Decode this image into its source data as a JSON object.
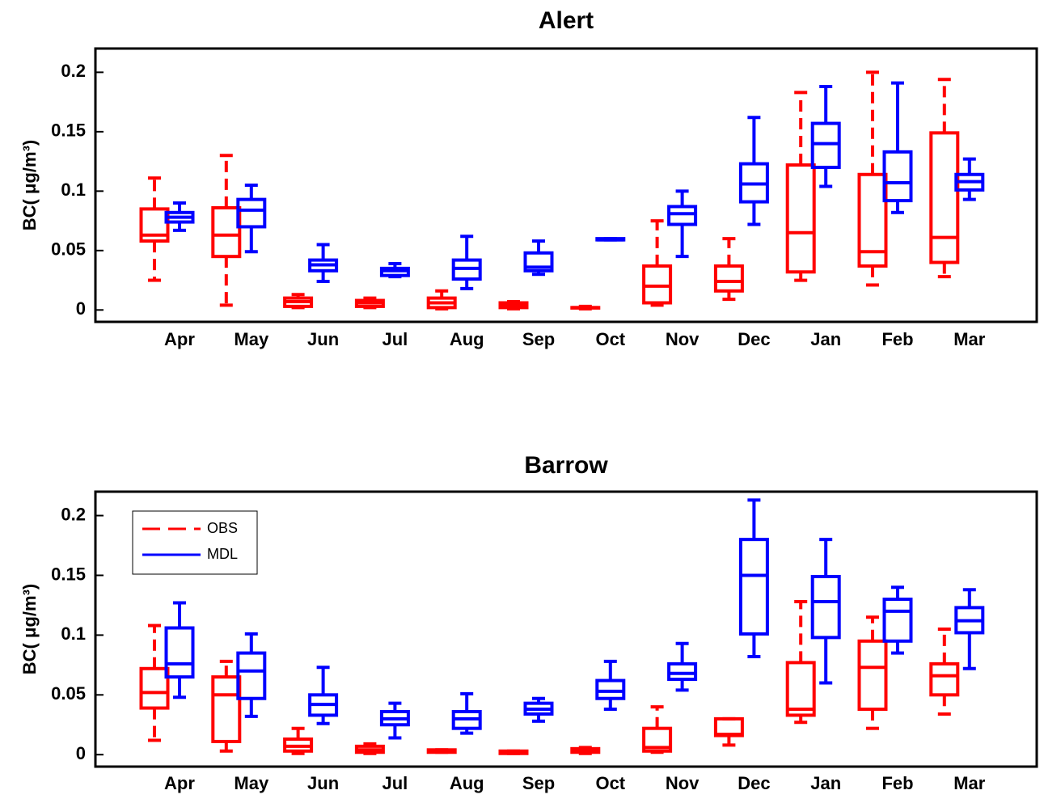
{
  "chart_data": [
    {
      "type": "box",
      "title": "Alert",
      "y_label": "BC( μg/m³)",
      "categories": [
        "Apr",
        "May",
        "Jun",
        "Jul",
        "Aug",
        "Sep",
        "Oct",
        "Nov",
        "Dec",
        "Jan",
        "Feb",
        "Mar"
      ],
      "ylim": [
        -0.01,
        0.22
      ],
      "yticks": [
        0,
        0.05,
        0.1,
        0.15,
        0.2
      ],
      "series": [
        {
          "name": "OBS",
          "color": "#ff0000",
          "line_style": "dashed",
          "low": [
            0.025,
            0.004,
            0.002,
            0.002,
            0.001,
            0.001,
            0.001,
            0.004,
            0.009,
            0.025,
            0.021,
            0.028
          ],
          "q1": [
            0.058,
            0.045,
            0.003,
            0.003,
            0.002,
            0.002,
            0.002,
            0.006,
            0.016,
            0.032,
            0.037,
            0.04
          ],
          "median": [
            0.063,
            0.063,
            0.007,
            0.006,
            0.006,
            0.004,
            0.002,
            0.02,
            0.024,
            0.065,
            0.049,
            0.061
          ],
          "q3": [
            0.085,
            0.086,
            0.01,
            0.008,
            0.01,
            0.006,
            0.002,
            0.037,
            0.037,
            0.122,
            0.114,
            0.149
          ],
          "high": [
            0.111,
            0.13,
            0.013,
            0.01,
            0.016,
            0.007,
            0.003,
            0.075,
            0.06,
            0.183,
            0.2,
            0.194
          ]
        },
        {
          "name": "MDL",
          "color": "#0000ff",
          "line_style": "solid",
          "low": [
            0.067,
            0.049,
            0.024,
            0.028,
            0.018,
            0.03,
            0.059,
            0.045,
            0.072,
            0.104,
            0.082,
            0.093
          ],
          "q1": [
            0.074,
            0.07,
            0.033,
            0.029,
            0.026,
            0.033,
            0.059,
            0.072,
            0.091,
            0.12,
            0.092,
            0.101
          ],
          "median": [
            0.078,
            0.084,
            0.038,
            0.033,
            0.035,
            0.036,
            0.059,
            0.081,
            0.106,
            0.14,
            0.107,
            0.108
          ],
          "q3": [
            0.082,
            0.093,
            0.042,
            0.035,
            0.042,
            0.048,
            0.06,
            0.087,
            0.123,
            0.157,
            0.133,
            0.114
          ],
          "high": [
            0.09,
            0.105,
            0.055,
            0.039,
            0.062,
            0.058,
            0.06,
            0.1,
            0.162,
            0.188,
            0.191,
            0.127
          ]
        }
      ]
    },
    {
      "type": "box",
      "title": "Barrow",
      "y_label": "BC( μg/m³)",
      "legend": "upper left",
      "categories": [
        "Apr",
        "May",
        "Jun",
        "Jul",
        "Aug",
        "Sep",
        "Oct",
        "Nov",
        "Dec",
        "Jan",
        "Feb",
        "Mar"
      ],
      "ylim": [
        -0.01,
        0.22
      ],
      "yticks": [
        0,
        0.05,
        0.1,
        0.15,
        0.2
      ],
      "series": [
        {
          "name": "OBS",
          "color": "#ff0000",
          "line_style": "dashed",
          "low": [
            0.012,
            0.003,
            0.001,
            0.001,
            0.002,
            0.001,
            0.001,
            0.002,
            0.008,
            0.027,
            0.022,
            0.034
          ],
          "q1": [
            0.039,
            0.011,
            0.003,
            0.002,
            0.002,
            0.001,
            0.002,
            0.003,
            0.016,
            0.033,
            0.038,
            0.05
          ],
          "median": [
            0.052,
            0.05,
            0.007,
            0.004,
            0.003,
            0.002,
            0.004,
            0.006,
            0.017,
            0.038,
            0.073,
            0.066
          ],
          "q3": [
            0.072,
            0.065,
            0.013,
            0.007,
            0.004,
            0.003,
            0.005,
            0.022,
            0.03,
            0.077,
            0.095,
            0.076
          ],
          "high": [
            0.108,
            0.078,
            0.022,
            0.009,
            0.004,
            0.003,
            0.006,
            0.04,
            0.03,
            0.128,
            0.115,
            0.105
          ]
        },
        {
          "name": "MDL",
          "color": "#0000ff",
          "line_style": "solid",
          "low": [
            0.048,
            0.032,
            0.026,
            0.014,
            0.018,
            0.028,
            0.038,
            0.054,
            0.082,
            0.06,
            0.085,
            0.072
          ],
          "q1": [
            0.065,
            0.047,
            0.033,
            0.025,
            0.022,
            0.034,
            0.047,
            0.063,
            0.101,
            0.098,
            0.095,
            0.102
          ],
          "median": [
            0.076,
            0.07,
            0.042,
            0.03,
            0.03,
            0.038,
            0.053,
            0.068,
            0.15,
            0.128,
            0.12,
            0.112
          ],
          "q3": [
            0.106,
            0.085,
            0.05,
            0.036,
            0.036,
            0.043,
            0.062,
            0.076,
            0.18,
            0.149,
            0.13,
            0.123
          ],
          "high": [
            0.127,
            0.101,
            0.073,
            0.043,
            0.051,
            0.047,
            0.078,
            0.093,
            0.213,
            0.18,
            0.14,
            0.138
          ]
        }
      ]
    }
  ]
}
